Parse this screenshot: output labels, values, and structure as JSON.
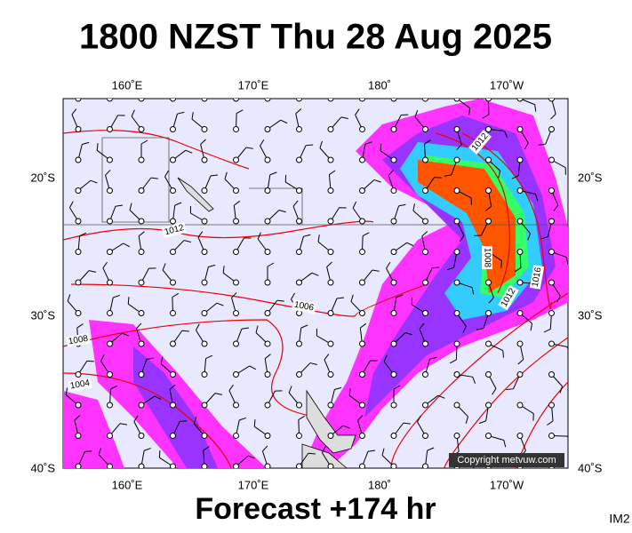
{
  "header": {
    "title": "1800 NZST Thu 28 Aug 2025"
  },
  "map": {
    "lon_labels": [
      "160˚E",
      "170˚E",
      "180˚",
      "170˚W"
    ],
    "lat_labels": [
      "20˚S",
      "30˚S",
      "40˚S"
    ],
    "isobar_labels": [
      "1012",
      "1012",
      "1008",
      "1012",
      "1016",
      "1006",
      "1008",
      "1004"
    ],
    "copyright": "Copyright metvuw.com"
  },
  "footer": {
    "forecast": "Forecast +174 hr",
    "code": "IM2"
  }
}
